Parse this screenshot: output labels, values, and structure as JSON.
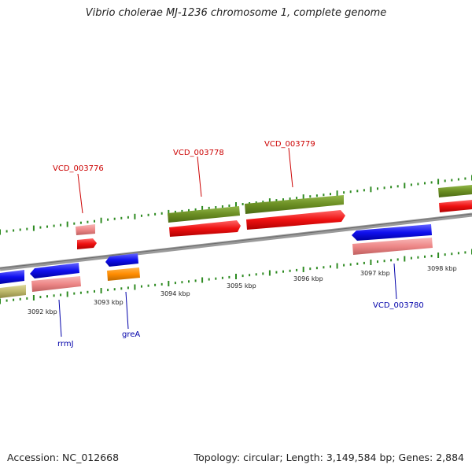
{
  "header": {
    "title": "Vibrio cholerae MJ-1236 chromosome 1, complete genome"
  },
  "footer": {
    "accession": "Accession: NC_012668",
    "summary": "Topology: circular; Length: 3,149,584 bp; Genes: 2,884"
  },
  "scale": {
    "ticks": [
      "3092 kbp",
      "3093 kbp",
      "3094 kbp",
      "3095 kbp",
      "3096 kbp",
      "3097 kbp",
      "3098 kbp"
    ]
  },
  "genes": {
    "VCD_003776": "VCD_003776",
    "VCD_003778": "VCD_003778",
    "VCD_003779": "VCD_003779",
    "VCD_003780": "VCD_003780",
    "rrmJ": "rrmJ",
    "greA": "greA"
  },
  "colors": {
    "backbone": "#8a8a8a",
    "forward_gene": "#ee1111",
    "forward_cds": "#6b8e23",
    "reverse_gene": "#1010ee",
    "reverse_cds": "#ee8888",
    "tan_cds": "#bdb76b",
    "orange_cds": "#ff8c00",
    "tick_green": "#2e8b22",
    "label_red": "#cc0000",
    "label_blue": "#0000aa"
  }
}
